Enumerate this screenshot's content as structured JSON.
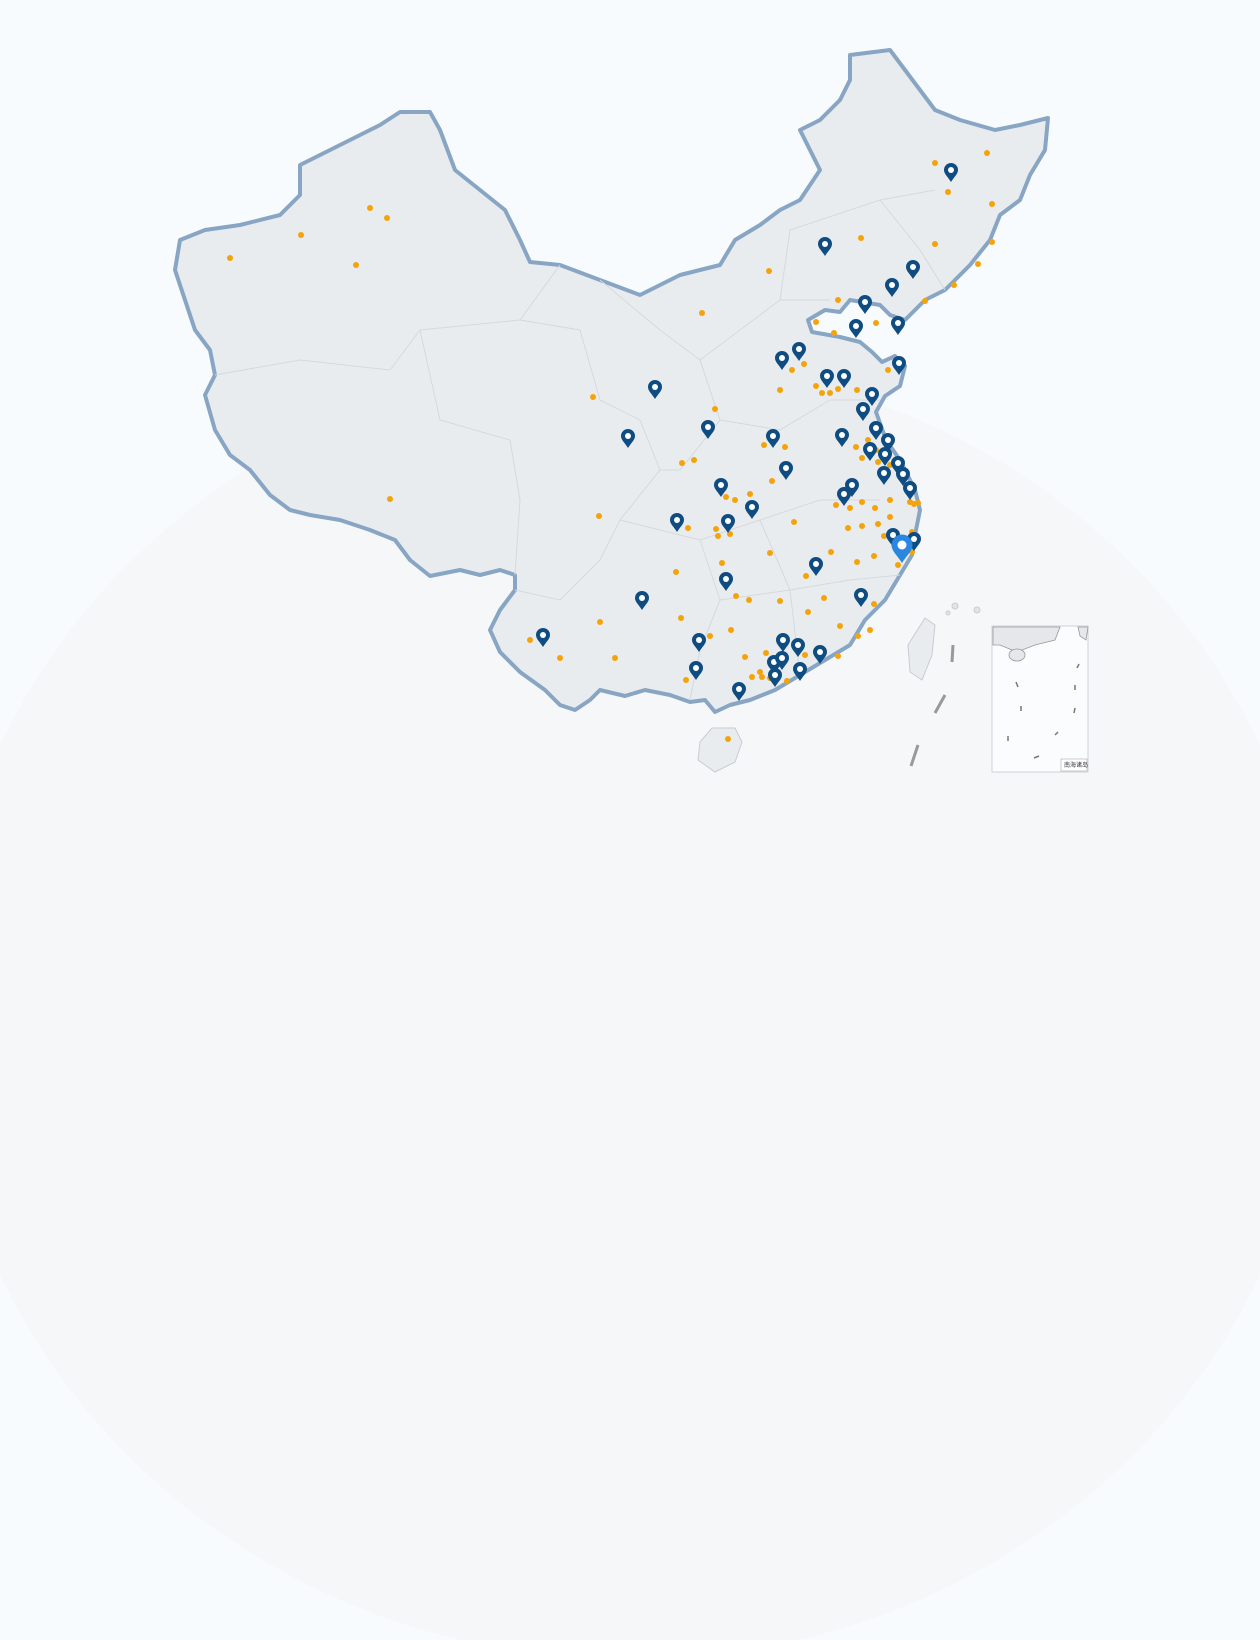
{
  "map": {
    "colors": {
      "land_fill": "#e9ecef",
      "border": "#88a6c4",
      "pin": "#0f4c81",
      "pin_highlight": "#2b86e0",
      "dot": "#f5a30a",
      "background": "#f8fbfd"
    },
    "icons": {
      "marker": "map-pin-icon",
      "point": "dot"
    },
    "inset": {
      "label": "南海诸岛"
    }
  }
}
